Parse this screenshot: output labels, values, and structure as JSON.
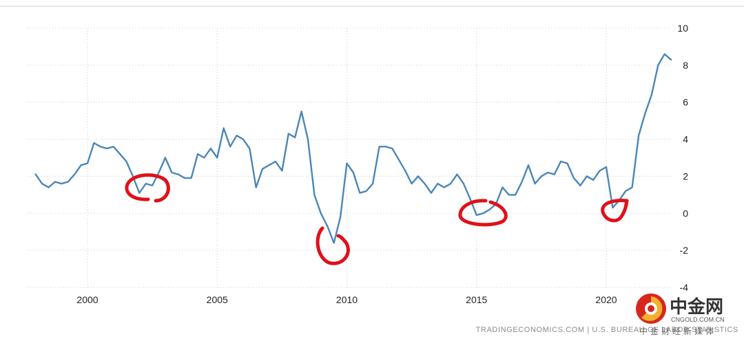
{
  "chart_data": {
    "type": "line",
    "title": "",
    "xlabel": "",
    "ylabel": "",
    "xlim": [
      1997.8,
      2022.6
    ],
    "ylim": [
      -4,
      10
    ],
    "x_ticks": [
      2000,
      2005,
      2010,
      2015,
      2020
    ],
    "x_tick_labels": [
      "2000",
      "2005",
      "2010",
      "2015",
      "2020"
    ],
    "y_ticks": [
      10,
      8,
      6,
      4,
      2,
      0,
      -2,
      -4
    ],
    "y_tick_labels": [
      "10",
      "8",
      "6",
      "4",
      "2",
      "0",
      "-2",
      "-4"
    ],
    "grid": true,
    "legend": "none",
    "color": "#4a86b8",
    "series": [
      {
        "x": [
          1998.0,
          1998.25,
          1998.5,
          1998.75,
          1999.0,
          1999.25,
          1999.5,
          1999.75,
          2000.0,
          2000.25,
          2000.5,
          2000.75,
          2001.0,
          2001.25,
          2001.5,
          2001.75,
          2002.0,
          2002.25,
          2002.5,
          2002.75,
          2003.0,
          2003.25,
          2003.5,
          2003.75,
          2004.0,
          2004.25,
          2004.5,
          2004.75,
          2005.0,
          2005.25,
          2005.5,
          2005.75,
          2006.0,
          2006.25,
          2006.5,
          2006.75,
          2007.0,
          2007.25,
          2007.5,
          2007.75,
          2008.0,
          2008.25,
          2008.5,
          2008.75,
          2009.0,
          2009.25,
          2009.5,
          2009.75,
          2010.0,
          2010.25,
          2010.5,
          2010.75,
          2011.0,
          2011.25,
          2011.5,
          2011.75,
          2012.0,
          2012.25,
          2012.5,
          2012.75,
          2013.0,
          2013.25,
          2013.5,
          2013.75,
          2014.0,
          2014.25,
          2014.5,
          2014.75,
          2015.0,
          2015.25,
          2015.5,
          2015.75,
          2016.0,
          2016.25,
          2016.5,
          2016.75,
          2017.0,
          2017.25,
          2017.5,
          2017.75,
          2018.0,
          2018.25,
          2018.5,
          2018.75,
          2019.0,
          2019.25,
          2019.5,
          2019.75,
          2020.0,
          2020.25,
          2020.5,
          2020.75,
          2021.0,
          2021.25,
          2021.5,
          2021.75,
          2022.0,
          2022.25,
          2022.5
        ],
        "y": [
          2.1,
          1.6,
          1.4,
          1.7,
          1.6,
          1.7,
          2.1,
          2.6,
          2.7,
          3.8,
          3.6,
          3.5,
          3.6,
          3.2,
          2.8,
          2.0,
          1.1,
          1.6,
          1.5,
          2.2,
          3.0,
          2.2,
          2.1,
          1.9,
          1.9,
          3.2,
          3.0,
          3.5,
          3.0,
          4.6,
          3.6,
          4.2,
          4.0,
          3.5,
          1.4,
          2.4,
          2.6,
          2.8,
          2.3,
          4.3,
          4.1,
          5.5,
          4.0,
          1.0,
          0.0,
          -0.7,
          -1.6,
          -0.2,
          2.7,
          2.2,
          1.1,
          1.2,
          1.6,
          3.6,
          3.6,
          3.5,
          2.9,
          2.3,
          1.6,
          2.0,
          1.6,
          1.1,
          1.6,
          1.4,
          1.6,
          2.1,
          1.6,
          0.8,
          -0.1,
          0.0,
          0.2,
          0.5,
          1.4,
          1.0,
          1.0,
          1.7,
          2.6,
          1.6,
          2.0,
          2.2,
          2.1,
          2.8,
          2.7,
          1.9,
          1.5,
          2.0,
          1.8,
          2.3,
          2.5,
          0.3,
          0.7,
          1.2,
          1.4,
          4.2,
          5.4,
          6.4,
          8.0,
          8.6,
          8.3
        ]
      }
    ]
  },
  "annotations": {
    "circle_color": "#e0101a"
  },
  "footer": {
    "source_text": "TRADINGECONOMICS.COM  |  U.S. BUREAU OF LABOR STATISTICS"
  },
  "watermark": {
    "logo_text": "中金网",
    "logo_url": "CNGOLD.COM.CN",
    "logo_sub": "中金财经新媒体",
    "icon_name": "cngold-logo-icon"
  }
}
